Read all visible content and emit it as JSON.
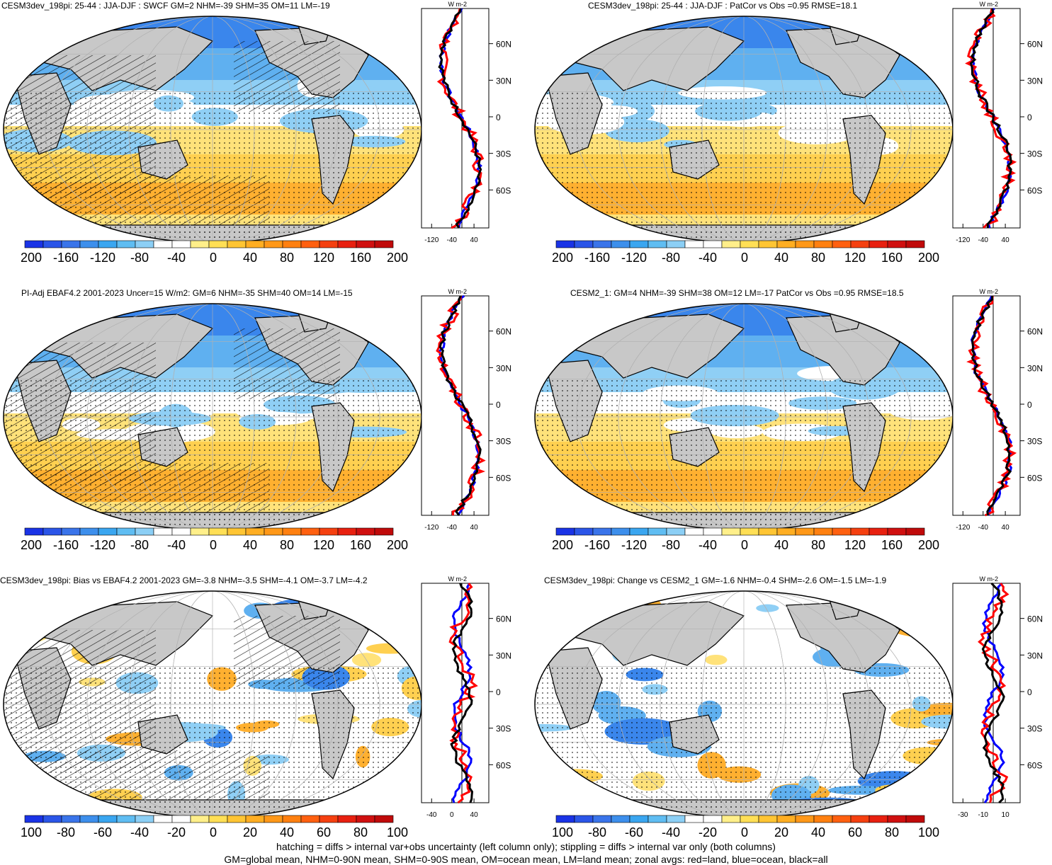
{
  "panels": [
    {
      "title": "CESM3dev_198pi: 25-44 : JJA-DJF : SWCF GM=2 NHM=-39 SHM=35 OM=11 LM=-19",
      "scale": "200",
      "hatched": true,
      "mode": "full"
    },
    {
      "title": "CESM3dev_198pi: 25-44 : JJA-DJF : PatCor vs Obs =0.95 RMSE=18.1",
      "scale": "200",
      "hatched": false,
      "mode": "full"
    },
    {
      "title": "PI-Adj EBAF4.2 2001-2023 Uncer=15 W/m2: GM=6 NHM=-35 SHM=40 OM=14 LM=-15",
      "scale": "200",
      "hatched": true,
      "mode": "full"
    },
    {
      "title": "CESM2_1: GM=4 NHM=-39 SHM=38 OM=12 LM=-17 PatCor vs Obs =0.95 RMSE=18.5",
      "scale": "200",
      "hatched": false,
      "mode": "full"
    },
    {
      "title": "CESM3dev_198pi: Bias vs EBAF4.2 2001-2023 GM=-3.8 NHM=-3.5 SHM=-4.1 OM=-3.7 LM=-4.2",
      "scale": "100",
      "hatched": true,
      "mode": "diff"
    },
    {
      "title": "CESM3dev_198pi: Change vs CESM2_1 GM=-1.6 NHM=-0.4 SHM=-2.6 OM=-1.5 LM=-1.9",
      "scale": "100",
      "hatched": false,
      "mode": "diff"
    }
  ],
  "chart_data": [
    {
      "type": "heatmap",
      "colorbar_ticks": [
        "-200",
        "-160",
        "-120",
        "-80",
        "-40",
        "0",
        "40",
        "80",
        "120",
        "160",
        "200"
      ],
      "colorbar_colors": [
        "#1a33e6",
        "#2b55e8",
        "#3a74ea",
        "#3d8fec",
        "#3aa6f0",
        "#5fbdf2",
        "#8ccff5",
        "#ffffff",
        "#ffffff",
        "#ffef8a",
        "#ffdf55",
        "#ffc533",
        "#ffae22",
        "#ff9818",
        "#ff8010",
        "#ff6010",
        "#f54010",
        "#e82010",
        "#d01010",
        "#c00a0a"
      ],
      "zonal_xticks": [
        "-120",
        "-40",
        "40"
      ],
      "zonal_xrange": [
        -160,
        80
      ],
      "unit_label": "W m-2",
      "lat_ticks": [
        "60N",
        "30N",
        "0",
        "30S",
        "60S"
      ],
      "series_colors": {
        "land": "#ff0000",
        "ocean": "#0000ff",
        "all": "#000000"
      }
    },
    {
      "type": "heatmap",
      "colorbar_ticks": [
        "-100",
        "-80",
        "-60",
        "-40",
        "-20",
        "0",
        "20",
        "40",
        "60",
        "80",
        "100"
      ],
      "colorbar_colors": [
        "#1a33e6",
        "#2b55e8",
        "#3a74ea",
        "#3d8fec",
        "#3aa6f0",
        "#5fbdf2",
        "#8ccff5",
        "#ffffff",
        "#ffffff",
        "#ffef8a",
        "#ffdf55",
        "#ffc533",
        "#ffae22",
        "#ff9818",
        "#ff8010",
        "#ff6010",
        "#f54010",
        "#e82010",
        "#d01010",
        "#c00a0a"
      ],
      "zonal_xticks_bias": [
        "-40",
        "0",
        "40"
      ],
      "zonal_xticks_change": [
        "-30",
        "-10",
        "10"
      ],
      "unit_label": "W m-2",
      "lat_ticks": [
        "60N",
        "30N",
        "0",
        "30S",
        "60S"
      ]
    }
  ],
  "footer": {
    "line1": "hatching = diffs > internal var+obs uncertainty (left column only); stippling = diffs > internal var only (both columns)",
    "line2": "GM=global mean, NHM=0-90N mean, SHM=0-90S mean, OM=ocean mean, LM=land mean; zonal avgs: red=land, blue=ocean, black=all"
  }
}
